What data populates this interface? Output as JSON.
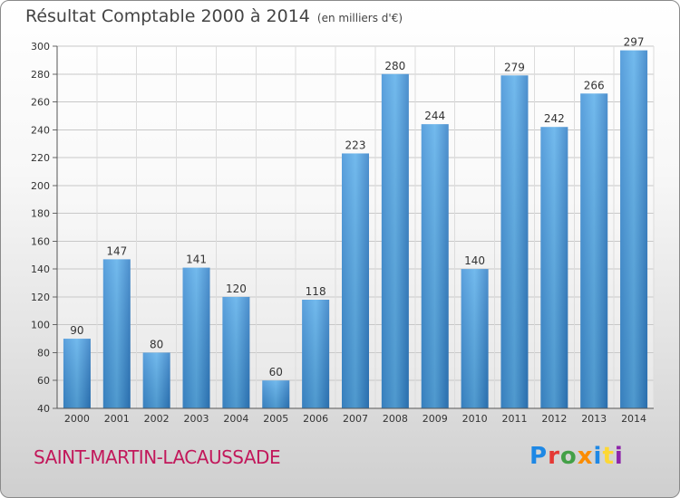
{
  "header": {
    "title": "Résultat Comptable 2000 à 2014",
    "subtitle": "(en milliers d'€)"
  },
  "footer": {
    "place": "SAINT-MARTIN-LACAUSSADE",
    "logo_letters": [
      {
        "ch": "P",
        "color": "#1e88e5"
      },
      {
        "ch": "r",
        "color": "#e53935"
      },
      {
        "ch": "o",
        "color": "#43a047"
      },
      {
        "ch": "x",
        "color": "#fb8c00"
      },
      {
        "ch": "i",
        "color": "#1e88e5"
      },
      {
        "ch": "t",
        "color": "#fdd835"
      },
      {
        "ch": "i",
        "color": "#8e24aa"
      }
    ]
  },
  "chart_data": {
    "type": "bar",
    "title": "Résultat Comptable 2000 à 2014",
    "subtitle": "(en milliers d'€)",
    "categories": [
      "2000",
      "2001",
      "2002",
      "2003",
      "2004",
      "2005",
      "2006",
      "2007",
      "2008",
      "2009",
      "2010",
      "2011",
      "2012",
      "2013",
      "2014"
    ],
    "values": [
      90,
      147,
      80,
      141,
      120,
      60,
      118,
      223,
      280,
      244,
      140,
      279,
      242,
      266,
      297
    ],
    "ylim": [
      40,
      300
    ],
    "yticks": [
      40,
      60,
      80,
      100,
      120,
      140,
      160,
      180,
      200,
      220,
      240,
      260,
      280,
      300
    ],
    "grid": true,
    "bar_color": "#4a9fe0"
  }
}
